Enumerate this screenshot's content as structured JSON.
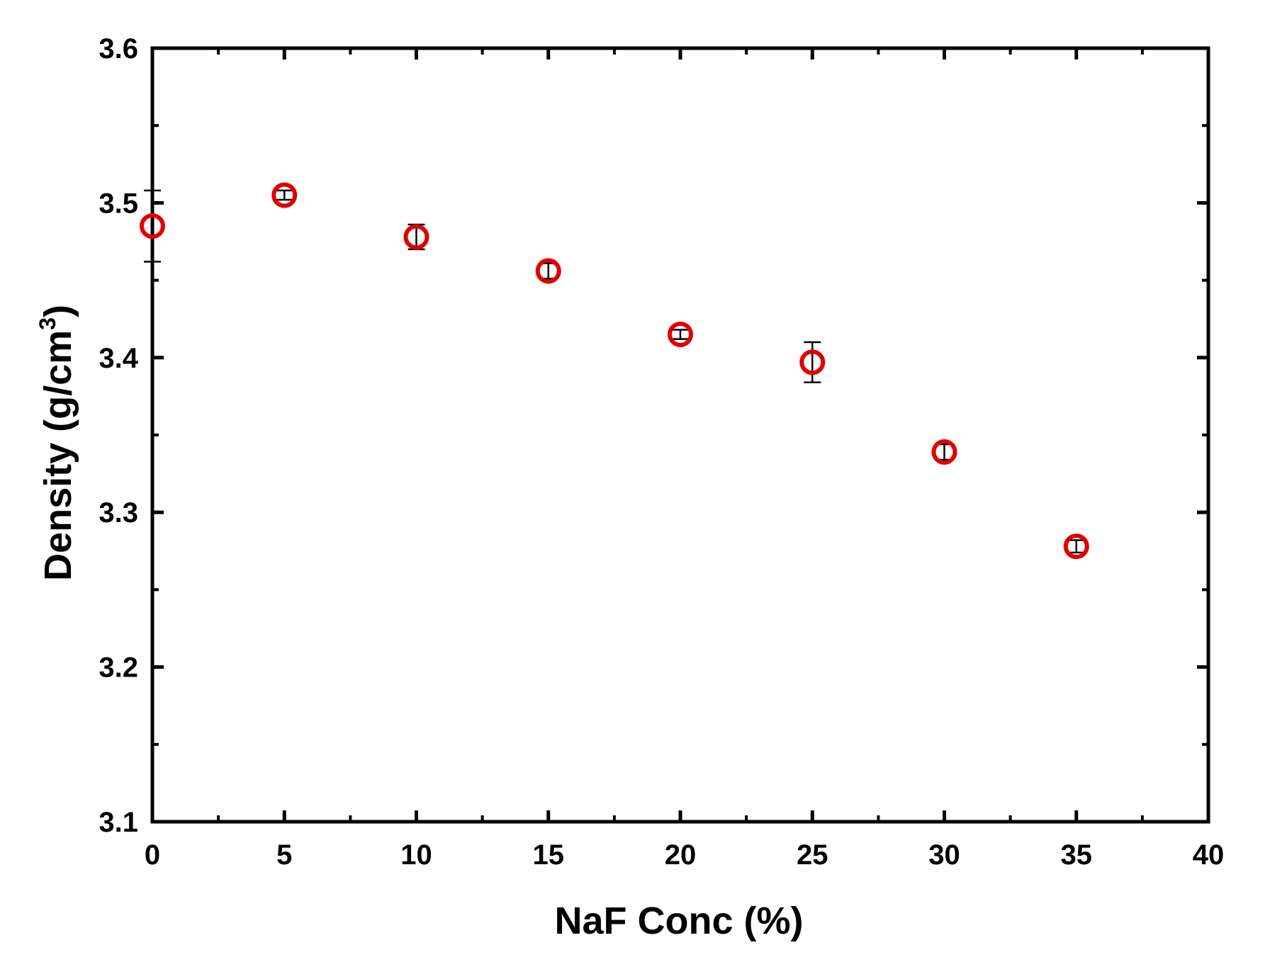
{
  "chart_data": {
    "type": "scatter",
    "xlabel": "NaF Conc (%)",
    "ylabel_prefix": "Density (g/cm",
    "ylabel_superscript": "3",
    "ylabel_suffix": ")",
    "xlim": [
      0,
      40
    ],
    "ylim": [
      3.1,
      3.6
    ],
    "x_ticks": [
      "0",
      "5",
      "10",
      "15",
      "20",
      "25",
      "30",
      "35",
      "40"
    ],
    "y_ticks": [
      "3.1",
      "3.2",
      "3.3",
      "3.4",
      "3.5",
      "3.6"
    ],
    "grid": false,
    "marker_color": "#e00000",
    "error_bar_color": "#000000",
    "series": [
      {
        "x": [
          0,
          5,
          10,
          15,
          20,
          25,
          30,
          35
        ],
        "y": [
          3.485,
          3.505,
          3.478,
          3.456,
          3.415,
          3.397,
          3.339,
          3.278
        ],
        "error": [
          0.023,
          0.003,
          0.008,
          0.005,
          0.003,
          0.013,
          0.005,
          0.004
        ]
      }
    ]
  }
}
